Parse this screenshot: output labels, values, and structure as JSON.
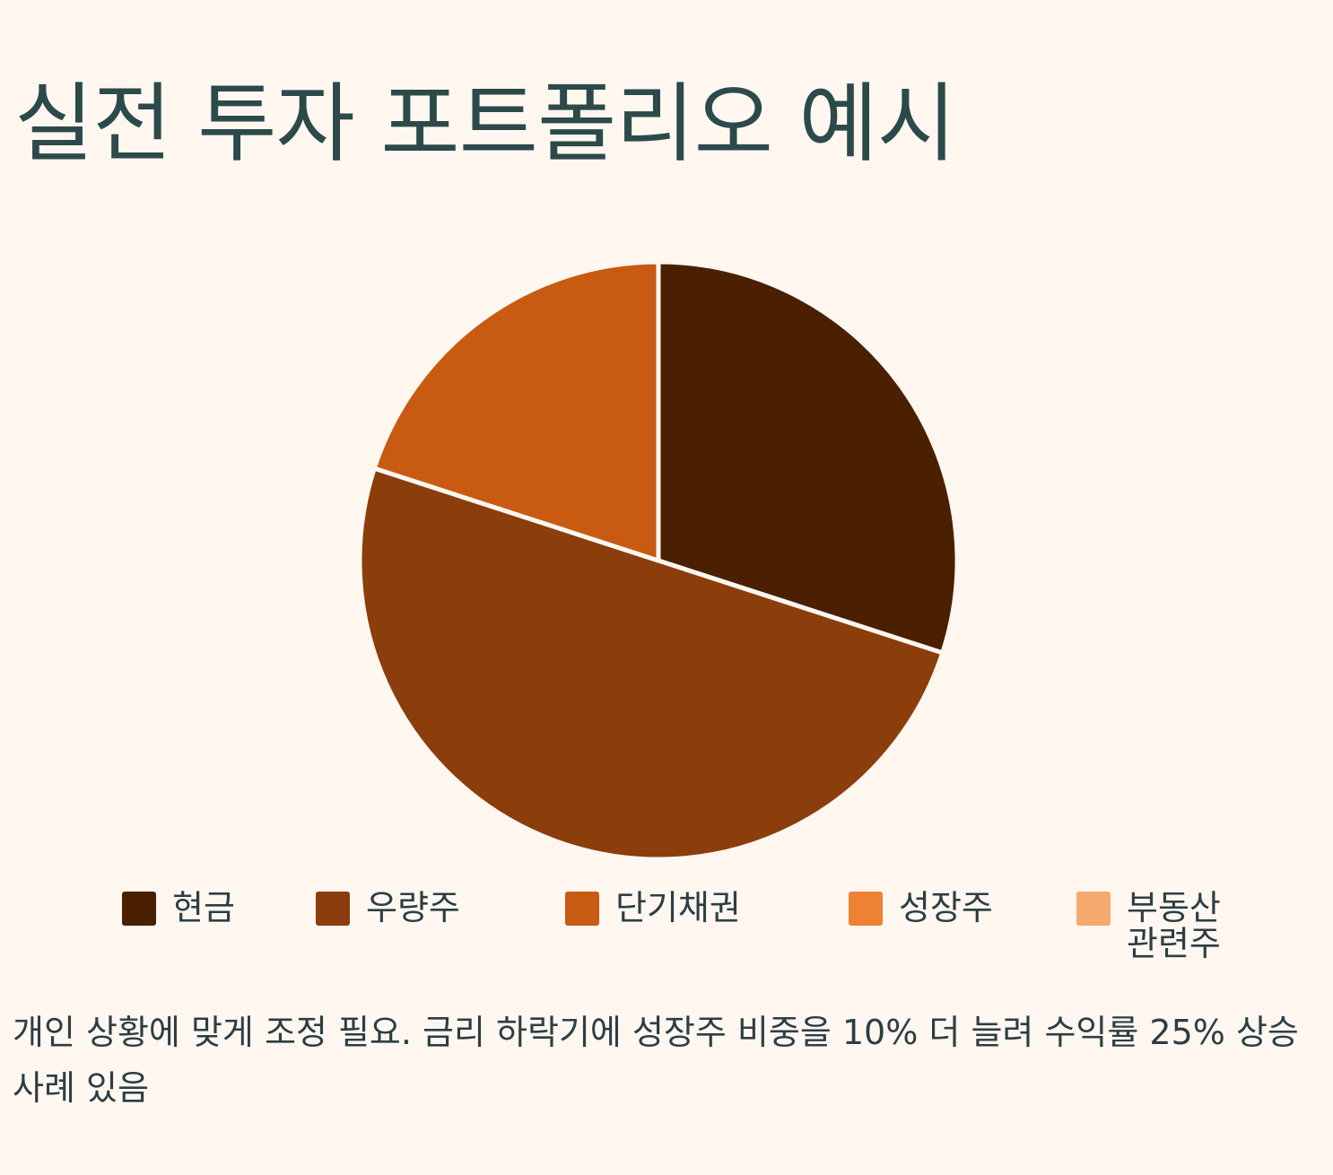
{
  "chart_data": {
    "type": "pie",
    "title": "실전 투자 포트폴리오 예시",
    "labels": [
      "현금",
      "우량주",
      "단기채권",
      "성장주",
      "부동산 관련주"
    ],
    "values": [
      30,
      50,
      20,
      0,
      0
    ],
    "colors": [
      "#4a2000",
      "#8b3d0b",
      "#c85a12",
      "#ee8132",
      "#f4a96e"
    ],
    "legend_position": "bottom",
    "note": "개인 상황에 맞게 조정 필요. 금리 하락기에 성장주 비중을 10% 더 늘려 수익률 25% 상승 사례 있음"
  }
}
